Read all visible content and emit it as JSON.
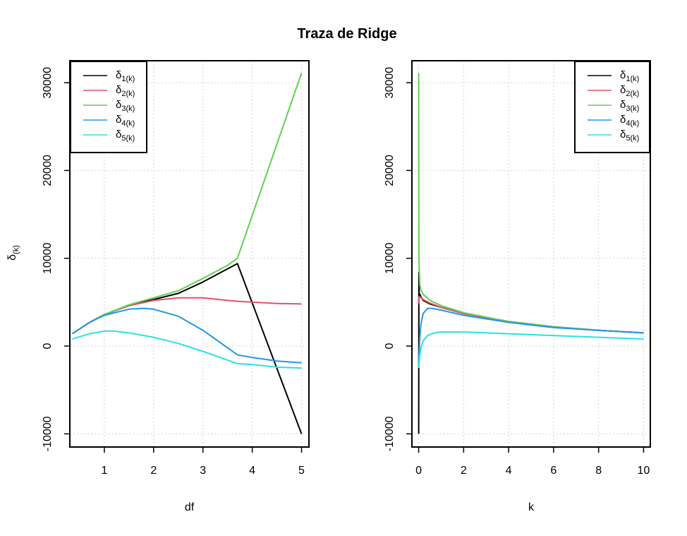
{
  "figure": {
    "title": "Traza de Ridge",
    "ylabel_main": "δ",
    "ylabel_sub": "(k)"
  },
  "legend": {
    "entries": [
      {
        "main": "δ",
        "sub": "1(k)",
        "color": "#000000"
      },
      {
        "main": "δ",
        "sub": "2(k)",
        "color": "#DF536B"
      },
      {
        "main": "δ",
        "sub": "3(k)",
        "color": "#61D04F"
      },
      {
        "main": "δ",
        "sub": "4(k)",
        "color": "#2297E6"
      },
      {
        "main": "δ",
        "sub": "5(k)",
        "color": "#28E2E5"
      }
    ]
  },
  "chart_data": [
    {
      "type": "line",
      "xlabel": "df",
      "ylabel": "δ(k)",
      "xlim": [
        0.3,
        5.15
      ],
      "ylim": [
        -11500,
        32500
      ],
      "xticks": [
        1,
        2,
        3,
        4,
        5
      ],
      "yticks": [
        -10000,
        0,
        10000,
        20000,
        30000
      ],
      "grid": true,
      "legend_position": "top-left",
      "series": [
        {
          "name": "δ1(k)",
          "color": "#000000",
          "points": [
            [
              0.35,
              1400
            ],
            [
              0.7,
              2700
            ],
            [
              1.0,
              3600
            ],
            [
              1.5,
              4600
            ],
            [
              2.0,
              5300
            ],
            [
              2.5,
              6000
            ],
            [
              3.0,
              7300
            ],
            [
              3.7,
              9400
            ],
            [
              5.0,
              -10000
            ]
          ]
        },
        {
          "name": "δ2(k)",
          "color": "#DF536B",
          "points": [
            [
              0.35,
              1400
            ],
            [
              0.7,
              2700
            ],
            [
              1.0,
              3600
            ],
            [
              1.5,
              4600
            ],
            [
              2.0,
              5200
            ],
            [
              2.5,
              5500
            ],
            [
              3.0,
              5500
            ],
            [
              3.5,
              5200
            ],
            [
              3.7,
              5100
            ],
            [
              4.0,
              5000
            ],
            [
              4.5,
              4850
            ],
            [
              5.0,
              4800
            ]
          ]
        },
        {
          "name": "δ3(k)",
          "color": "#61D04F",
          "points": [
            [
              0.35,
              1400
            ],
            [
              0.7,
              2700
            ],
            [
              1.0,
              3600
            ],
            [
              1.5,
              4700
            ],
            [
              2.0,
              5500
            ],
            [
              2.5,
              6300
            ],
            [
              3.0,
              7700
            ],
            [
              3.5,
              9200
            ],
            [
              3.7,
              10000
            ],
            [
              5.0,
              31100
            ]
          ]
        },
        {
          "name": "δ4(k)",
          "color": "#2297E6",
          "points": [
            [
              0.35,
              1400
            ],
            [
              0.7,
              2700
            ],
            [
              1.0,
              3500
            ],
            [
              1.5,
              4200
            ],
            [
              1.8,
              4300
            ],
            [
              2.0,
              4200
            ],
            [
              2.5,
              3400
            ],
            [
              3.0,
              1800
            ],
            [
              3.5,
              -200
            ],
            [
              3.7,
              -1000
            ],
            [
              4.0,
              -1300
            ],
            [
              4.5,
              -1700
            ],
            [
              5.0,
              -1900
            ]
          ]
        },
        {
          "name": "δ5(k)",
          "color": "#28E2E5",
          "points": [
            [
              0.35,
              800
            ],
            [
              0.7,
              1400
            ],
            [
              1.0,
              1700
            ],
            [
              1.2,
              1700
            ],
            [
              1.5,
              1500
            ],
            [
              2.0,
              1000
            ],
            [
              2.5,
              300
            ],
            [
              3.0,
              -600
            ],
            [
              3.5,
              -1600
            ],
            [
              3.7,
              -2000
            ],
            [
              4.0,
              -2100
            ],
            [
              4.5,
              -2400
            ],
            [
              5.0,
              -2500
            ]
          ]
        }
      ]
    },
    {
      "type": "line",
      "xlabel": "k",
      "ylabel": "",
      "xlim": [
        -0.3,
        10.3
      ],
      "ylim": [
        -11500,
        32500
      ],
      "xticks": [
        0,
        2,
        4,
        6,
        8,
        10
      ],
      "yticks": [
        -10000,
        0,
        10000,
        20000,
        30000
      ],
      "grid": true,
      "legend_position": "top-right",
      "series": [
        {
          "name": "δ1(k)",
          "color": "#000000",
          "points": [
            [
              0.0,
              -10000
            ],
            [
              0.01,
              8400
            ],
            [
              0.02,
              6000
            ],
            [
              0.05,
              5900
            ],
            [
              0.1,
              5600
            ],
            [
              0.2,
              5200
            ],
            [
              0.5,
              4800
            ],
            [
              1,
              4400
            ],
            [
              2,
              3700
            ],
            [
              4,
              2800
            ],
            [
              6,
              2200
            ],
            [
              8,
              1800
            ],
            [
              10,
              1500
            ]
          ]
        },
        {
          "name": "δ2(k)",
          "color": "#DF536B",
          "points": [
            [
              0.0,
              4800
            ],
            [
              0.01,
              5600
            ],
            [
              0.05,
              5600
            ],
            [
              0.1,
              5500
            ],
            [
              0.2,
              5300
            ],
            [
              0.5,
              4900
            ],
            [
              1,
              4400
            ],
            [
              2,
              3700
            ],
            [
              4,
              2800
            ],
            [
              6,
              2200
            ],
            [
              8,
              1800
            ],
            [
              10,
              1500
            ]
          ]
        },
        {
          "name": "δ3(k)",
          "color": "#61D04F",
          "points": [
            [
              0.0,
              31100
            ],
            [
              0.005,
              20000
            ],
            [
              0.01,
              10000
            ],
            [
              0.05,
              7000
            ],
            [
              0.1,
              6400
            ],
            [
              0.2,
              5900
            ],
            [
              0.5,
              5200
            ],
            [
              1,
              4600
            ],
            [
              2,
              3800
            ],
            [
              4,
              2800
            ],
            [
              6,
              2200
            ],
            [
              8,
              1800
            ],
            [
              10,
              1500
            ]
          ]
        },
        {
          "name": "δ4(k)",
          "color": "#2297E6",
          "points": [
            [
              0.0,
              -1900
            ],
            [
              0.05,
              1000
            ],
            [
              0.1,
              2500
            ],
            [
              0.2,
              3700
            ],
            [
              0.4,
              4300
            ],
            [
              0.6,
              4300
            ],
            [
              1,
              4100
            ],
            [
              2,
              3500
            ],
            [
              4,
              2700
            ],
            [
              6,
              2100
            ],
            [
              8,
              1800
            ],
            [
              10,
              1500
            ]
          ]
        },
        {
          "name": "δ5(k)",
          "color": "#28E2E5",
          "points": [
            [
              0.0,
              -2500
            ],
            [
              0.05,
              -1000
            ],
            [
              0.1,
              -200
            ],
            [
              0.2,
              600
            ],
            [
              0.4,
              1200
            ],
            [
              0.7,
              1500
            ],
            [
              1,
              1600
            ],
            [
              2,
              1600
            ],
            [
              4,
              1400
            ],
            [
              6,
              1200
            ],
            [
              8,
              1000
            ],
            [
              10,
              800
            ]
          ]
        }
      ]
    }
  ]
}
